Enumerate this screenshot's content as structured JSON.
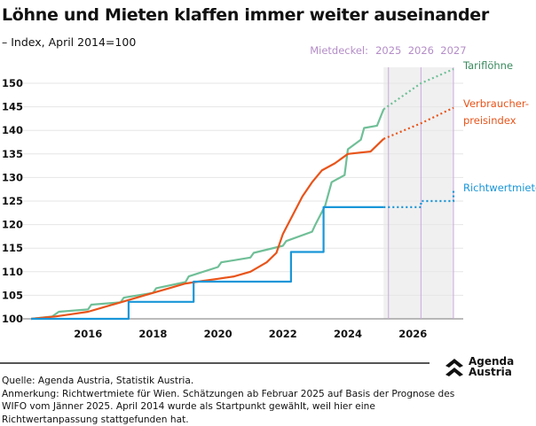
{
  "chart_data": {
    "type": "line",
    "title": "Löhne und Mieten klaffen immer weiter auseinander",
    "subtitle": "– Index, April 2014=100",
    "ylim": [
      100,
      153
    ],
    "yticks": [
      100,
      105,
      110,
      115,
      120,
      125,
      130,
      135,
      140,
      145,
      150
    ],
    "xticks": [
      2016,
      2018,
      2020,
      2022,
      2024,
      2026
    ],
    "xlim": [
      2014,
      2027.4
    ],
    "forecast_start": 2025.1,
    "mietdeckel": {
      "label": "Mietdeckel:",
      "years": [
        "2025",
        "2026",
        "2027"
      ],
      "x": [
        2025.25,
        2026.25,
        2027.25
      ]
    },
    "series": [
      {
        "name": "Tariflöhne",
        "color": "#6fbf97",
        "label_color": "#3a8a5e",
        "step": false,
        "x": [
          2014.25,
          2014.9,
          2015.1,
          2016,
          2016.1,
          2017,
          2017.1,
          2018,
          2018.1,
          2019,
          2019.1,
          2020,
          2020.1,
          2021,
          2021.1,
          2022,
          2022.1,
          2022.9,
          2023.0,
          2023.3,
          2023.5,
          2023.9,
          2024.0,
          2024.4,
          2024.5,
          2024.9,
          2025.1
        ],
        "values": [
          100,
          100.5,
          101.5,
          102,
          103,
          103.5,
          104.5,
          105.5,
          106.5,
          107.8,
          109,
          111,
          112,
          113,
          114,
          115.5,
          116.5,
          118.5,
          120,
          124,
          129,
          130.5,
          136,
          138,
          140.5,
          141,
          144.5
        ],
        "forecast_x": [
          2025.1,
          2026.25,
          2027.25
        ],
        "forecast_values": [
          144.5,
          150,
          153
        ]
      },
      {
        "name": "Verbraucher-\npreisindex",
        "label_lines": [
          "Verbraucher-",
          "preisindex"
        ],
        "color": "#e8541a",
        "label_color": "#e8541a",
        "step": false,
        "x": [
          2014.25,
          2015,
          2015.5,
          2016,
          2016.5,
          2017,
          2017.5,
          2018,
          2018.5,
          2019,
          2019.5,
          2020,
          2020.5,
          2021,
          2021.5,
          2021.8,
          2022,
          2022.3,
          2022.6,
          2022.9,
          2023.2,
          2023.6,
          2024,
          2024.4,
          2024.7,
          2025.1
        ],
        "values": [
          100,
          100.5,
          101,
          101.5,
          102.5,
          103.5,
          104.5,
          105.5,
          106.5,
          107.5,
          108,
          108.5,
          109,
          110,
          112,
          114,
          118,
          122,
          126,
          129,
          131.5,
          133,
          135,
          135.3,
          135.5,
          138.2
        ],
        "forecast_x": [
          2025.1,
          2026.25,
          2027.25
        ],
        "forecast_values": [
          138.2,
          141.5,
          144.8
        ]
      },
      {
        "name": "Richtwertmiete",
        "color": "#1996d8",
        "label_color": "#1996d8",
        "step": true,
        "x": [
          2014.25,
          2017.25,
          2017.25,
          2019.25,
          2019.25,
          2022.25,
          2022.25,
          2023.25,
          2023.25,
          2025.1
        ],
        "values": [
          100,
          100,
          103.6,
          103.6,
          107.9,
          107.9,
          114.2,
          114.2,
          123.7,
          123.7
        ],
        "forecast_x": [
          2025.1,
          2026.25,
          2026.25,
          2027.25,
          2027.25
        ],
        "forecast_values": [
          123.7,
          123.7,
          125,
          125,
          127.6
        ]
      }
    ]
  },
  "footer": {
    "source": "Quelle: Agenda Austria, Statistik Austria.",
    "note": "Anmerkung: Richtwertmiete für Wien. Schätzungen ab Februar 2025 auf Basis der Prognose des WIFO vom Jänner 2025. April 2014 wurde als Startpunkt gewählt, weil hier eine Richtwertanpassung stattgefunden hat.",
    "logo": [
      "Agenda",
      "Austria"
    ]
  }
}
